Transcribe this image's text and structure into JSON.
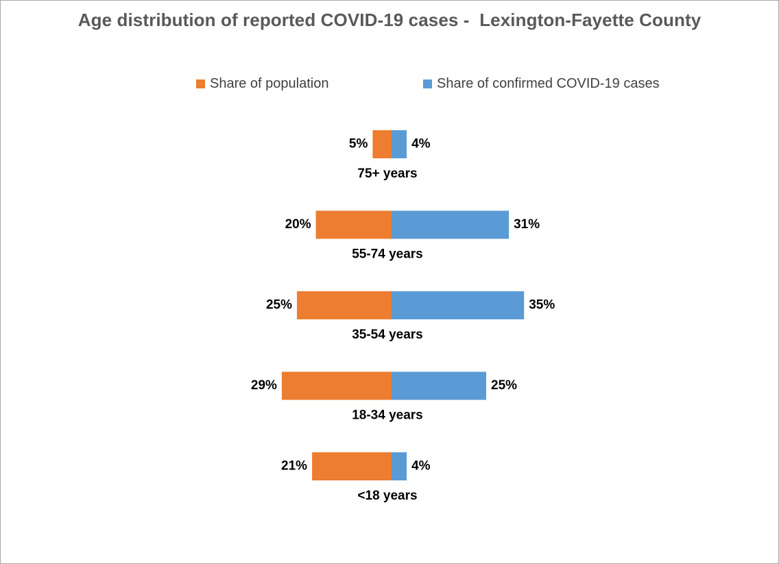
{
  "chart_data": {
    "type": "bar",
    "orientation": "horizontal-diverging",
    "title": "Age distribution of reported COVID-19 cases -  Lexington-Fayette County",
    "categories": [
      "75+ years",
      "55-74 years",
      "35-54 years",
      "18-34 years",
      "<18 years"
    ],
    "series": [
      {
        "name": "Share of population",
        "color": "#ED7D31",
        "values": [
          5,
          20,
          25,
          29,
          21
        ],
        "labels": [
          "5%",
          "20%",
          "25%",
          "29%",
          "21%"
        ]
      },
      {
        "name": "Share of confirmed COVID-19 cases",
        "color": "#5B9BD5",
        "values": [
          4,
          31,
          35,
          25,
          4
        ],
        "labels": [
          "4%",
          "31%",
          "35%",
          "25%",
          "4%"
        ]
      }
    ],
    "unit": "%",
    "legend_position": "top",
    "grid": false
  }
}
